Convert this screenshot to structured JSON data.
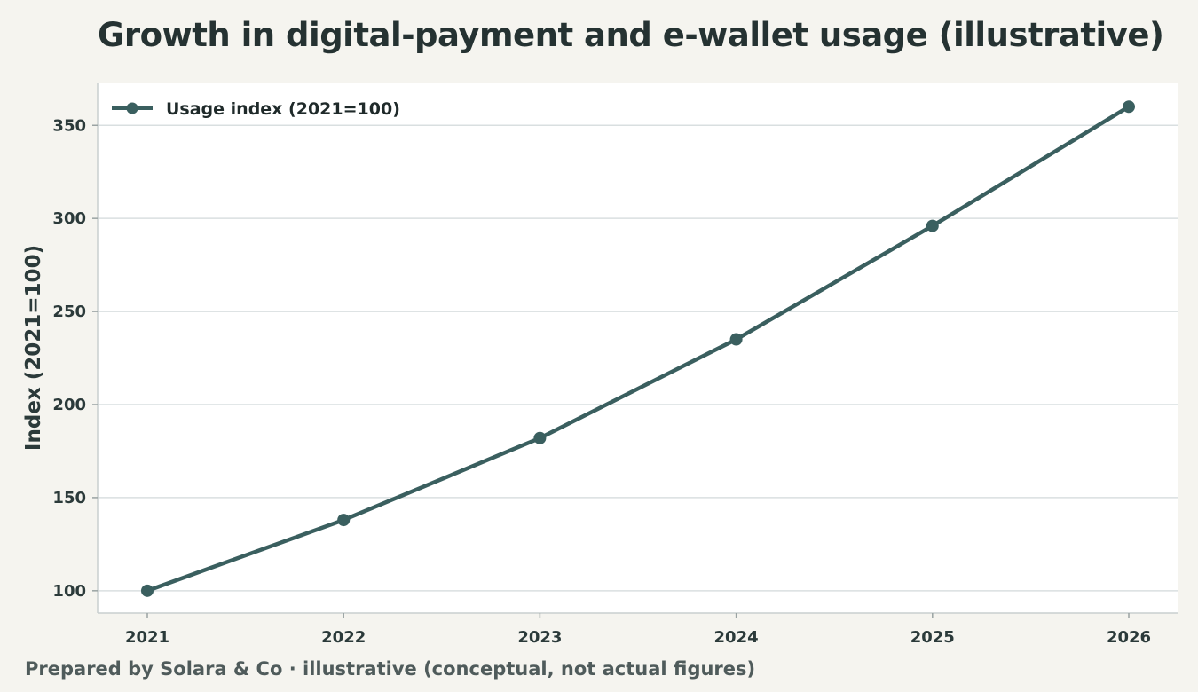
{
  "page": {
    "title": "Growth in digital-payment and e-wallet usage (illustrative)",
    "footer": "Prepared by Solara & Co · illustrative (conceptual, not actual figures)"
  },
  "colors": {
    "background": "#f5f4ef",
    "plot_background": "#ffffff",
    "series": "#3a5f5f",
    "grid": "#d9dfe0",
    "text": "#2b3a3a"
  },
  "chart_data": {
    "type": "line",
    "title": "Growth in digital-payment and e-wallet usage (illustrative)",
    "xlabel": "",
    "ylabel": "Index (2021=100)",
    "x": [
      "2021",
      "2022",
      "2023",
      "2024",
      "2025",
      "2026"
    ],
    "series": [
      {
        "name": "Usage index (2021=100)",
        "values": [
          100,
          138,
          182,
          235,
          296,
          360
        ],
        "color": "#3a5f5f",
        "marker": "circle"
      }
    ],
    "yticks": [
      100,
      150,
      200,
      250,
      300,
      350
    ],
    "ylim": [
      88,
      373
    ],
    "grid": true,
    "legend_position": "top-left"
  }
}
